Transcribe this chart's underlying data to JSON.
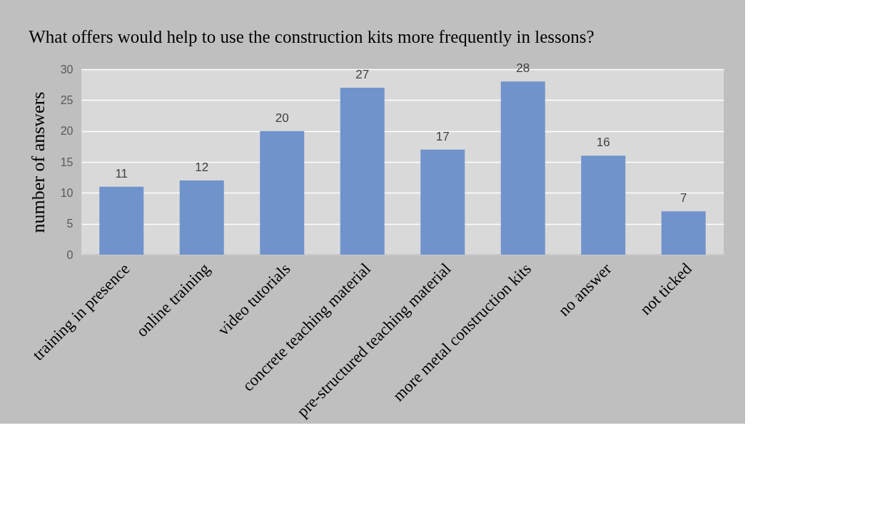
{
  "chart_data": {
    "type": "bar",
    "title": "What offers would help to use the construction kits more frequently in lessons?",
    "ylabel": "number of answers",
    "categories": [
      "training in presence",
      "online training",
      "video tutorials",
      "concrete teaching material",
      "pre-structured teaching material",
      "more metal construction kits",
      "no answer",
      "not ticked"
    ],
    "values": [
      11,
      12,
      20,
      27,
      17,
      28,
      16,
      7
    ],
    "color": "#7093cc",
    "ylim": [
      0,
      30
    ],
    "yticks": [
      0,
      5,
      10,
      15,
      20,
      25,
      30
    ],
    "grid": "y",
    "data_labels": true
  }
}
